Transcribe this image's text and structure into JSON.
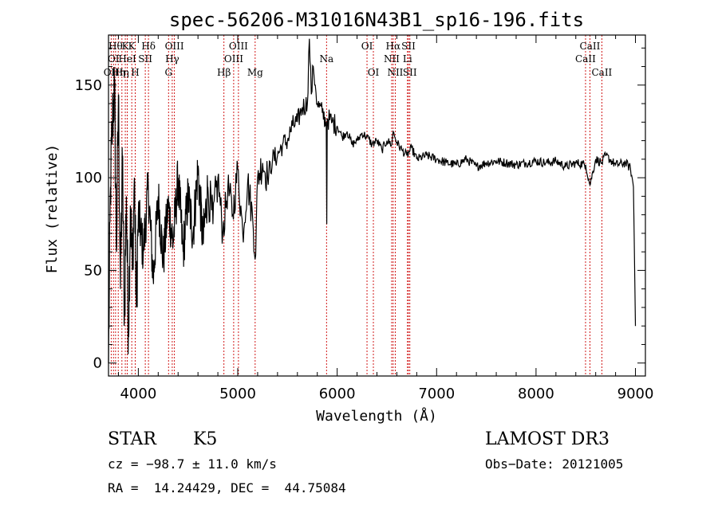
{
  "chart_data": {
    "type": "line",
    "title": "spec-56206-M31016N43B1_sp16-196.fits",
    "xlabel": "Wavelength (Å)",
    "ylabel": "Flux (relative)",
    "xlim": [
      3700,
      9100
    ],
    "ylim": [
      -7,
      177
    ],
    "xticks": [
      4000,
      5000,
      6000,
      7000,
      8000,
      9000
    ],
    "yticks": [
      0,
      50,
      100,
      150
    ],
    "series": [
      {
        "name": "spectrum",
        "x": [
          3700,
          3720,
          3740,
          3760,
          3780,
          3800,
          3820,
          3840,
          3860,
          3880,
          3900,
          3920,
          3940,
          3960,
          3980,
          4000,
          4050,
          4100,
          4150,
          4200,
          4250,
          4300,
          4350,
          4400,
          4450,
          4500,
          4550,
          4600,
          4650,
          4700,
          4750,
          4800,
          4850,
          4900,
          4950,
          5000,
          5050,
          5100,
          5150,
          5180,
          5200,
          5250,
          5300,
          5350,
          5400,
          5450,
          5500,
          5550,
          5600,
          5650,
          5700,
          5720,
          5740,
          5760,
          5780,
          5800,
          5850,
          5890,
          5895,
          5900,
          5950,
          6000,
          6050,
          6100,
          6150,
          6200,
          6250,
          6300,
          6350,
          6400,
          6450,
          6500,
          6550,
          6563,
          6600,
          6650,
          6700,
          6750,
          6800,
          6900,
          7000,
          7100,
          7200,
          7300,
          7400,
          7500,
          7600,
          7700,
          7800,
          7900,
          8000,
          8100,
          8200,
          8300,
          8400,
          8500,
          8542,
          8600,
          8662,
          8700,
          8800,
          8900,
          8950,
          8980,
          9000
        ],
        "values": [
          0,
          95,
          130,
          150,
          60,
          145,
          40,
          110,
          25,
          90,
          15,
          85,
          50,
          100,
          30,
          80,
          60,
          95,
          45,
          90,
          55,
          85,
          65,
          100,
          60,
          90,
          70,
          105,
          65,
          95,
          75,
          100,
          70,
          95,
          80,
          105,
          70,
          98,
          78,
          58,
          100,
          108,
          100,
          110,
          112,
          118,
          120,
          128,
          130,
          138,
          140,
          175,
          145,
          160,
          150,
          140,
          135,
          130,
          75,
          132,
          130,
          128,
          122,
          125,
          118,
          120,
          124,
          122,
          118,
          120,
          115,
          120,
          118,
          125,
          119,
          115,
          112,
          116,
          110,
          112,
          110,
          108,
          107,
          110,
          106,
          108,
          109,
          108,
          107,
          108,
          109,
          108,
          109,
          106,
          108,
          107,
          96,
          110,
          108,
          112,
          107,
          108,
          105,
          95,
          20
        ]
      }
    ],
    "line_markers": [
      {
        "x": 3727,
        "label": "OII",
        "row": 3
      },
      {
        "x": 3750,
        "label": "OI",
        "row": 2
      },
      {
        "x": 3771,
        "label": "Hθ",
        "row": 1
      },
      {
        "x": 3798,
        "label": "Hη",
        "row": 3
      },
      {
        "x": 3835,
        "label": "Hη",
        "row": 3
      },
      {
        "x": 3869,
        "label": "K",
        "row": 1
      },
      {
        "x": 3889,
        "label": "HeI",
        "row": 2
      },
      {
        "x": 3934,
        "label": "K",
        "row": 1
      },
      {
        "x": 3969,
        "label": "H",
        "row": 3
      },
      {
        "x": 4070,
        "label": "SII",
        "row": 2
      },
      {
        "x": 4102,
        "label": "Hδ",
        "row": 1
      },
      {
        "x": 4304,
        "label": "G",
        "row": 3
      },
      {
        "x": 4341,
        "label": "Hγ",
        "row": 2
      },
      {
        "x": 4363,
        "label": "OIII",
        "row": 1
      },
      {
        "x": 4861,
        "label": "Hβ",
        "row": 3
      },
      {
        "x": 4959,
        "label": "OIII",
        "row": 2
      },
      {
        "x": 5007,
        "label": "OIII",
        "row": 1
      },
      {
        "x": 5175,
        "label": "Mg",
        "row": 3
      },
      {
        "x": 5893,
        "label": "Na",
        "row": 2
      },
      {
        "x": 6300,
        "label": "OI",
        "row": 1
      },
      {
        "x": 6364,
        "label": "OI",
        "row": 3
      },
      {
        "x": 6548,
        "label": "NII",
        "row": 2
      },
      {
        "x": 6563,
        "label": "Hα",
        "row": 1
      },
      {
        "x": 6584,
        "label": "NII",
        "row": 3
      },
      {
        "x": 6707,
        "label": "Li",
        "row": 2
      },
      {
        "x": 6717,
        "label": "SII",
        "row": 1
      },
      {
        "x": 6731,
        "label": "SII",
        "row": 3
      },
      {
        "x": 8498,
        "label": "CaII",
        "row": 2
      },
      {
        "x": 8542,
        "label": "CaII",
        "row": 1
      },
      {
        "x": 8662,
        "label": "CaII",
        "row": 3
      }
    ]
  },
  "info": {
    "class": "STAR",
    "subclass": "K5",
    "survey": "LAMOST DR3",
    "cz": "cz = −98.7 ± 11.0 km/s",
    "obs_date": "Obs−Date: 20121005",
    "radec": "RA =  14.24429, DEC =  44.75084"
  }
}
